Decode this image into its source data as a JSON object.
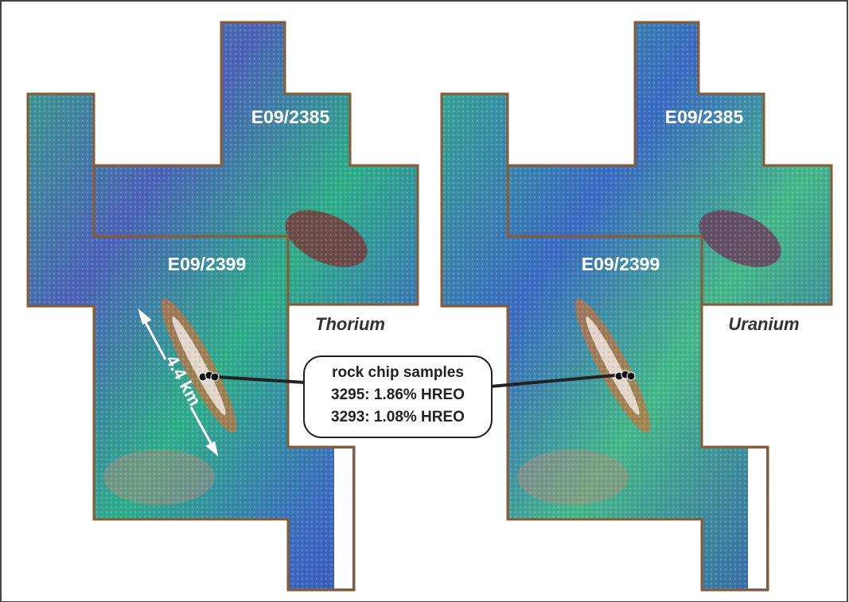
{
  "panels": [
    {
      "element": "Thorium",
      "tenements": [
        "E09/2385",
        "E09/2399"
      ]
    },
    {
      "element": "Uranium",
      "tenements": [
        "E09/2385",
        "E09/2399"
      ]
    }
  ],
  "scale": {
    "label": "4.4 km"
  },
  "callout": {
    "title": "rock chip samples",
    "lines": [
      "3295: 1.86% HREO",
      "3293: 1.08% HREO"
    ]
  }
}
